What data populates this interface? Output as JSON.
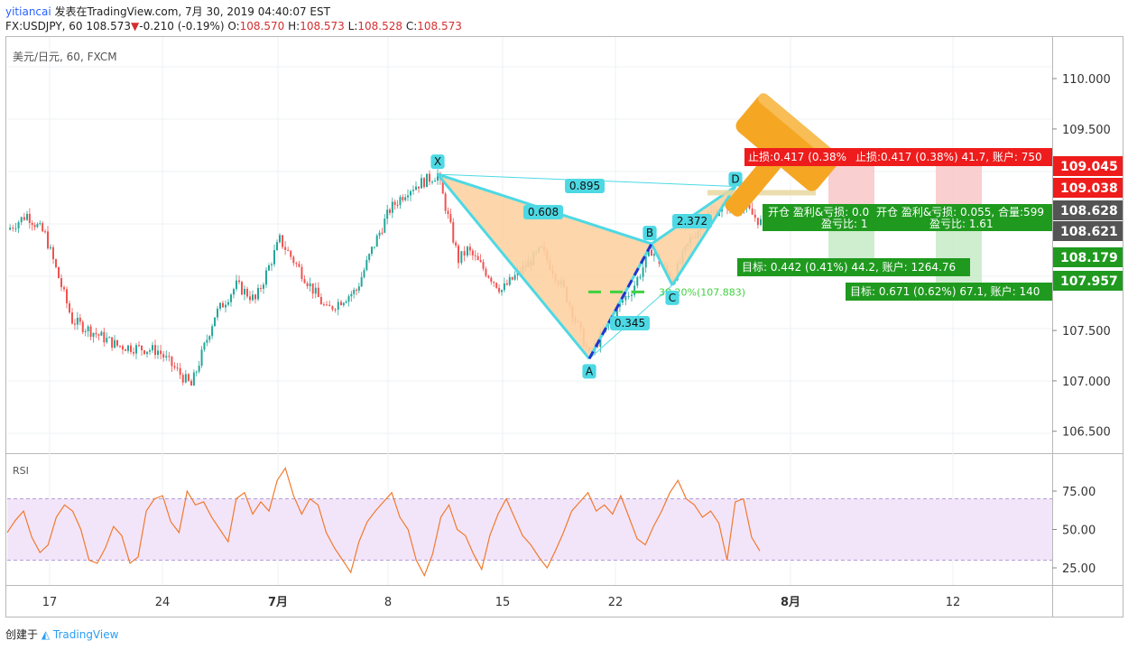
{
  "header": {
    "author": "yitiancai",
    "published_text": "发表在TradingView.com, 7月 30, 2019 04:40:07 EST",
    "symbol_line": "FX:USDJPY, 60",
    "last": "108.573",
    "change": "-0.210 (-0.19%)",
    "ohlc": [
      {
        "k": "O:",
        "v": "108.570"
      },
      {
        "k": "H:",
        "v": "108.573"
      },
      {
        "k": "L:",
        "v": "108.528"
      },
      {
        "k": "C:",
        "v": "108.573"
      }
    ]
  },
  "colors": {
    "up": "#26a69a",
    "down": "#ef5350",
    "pattern_fill": "#fdd2a2",
    "pattern_line": "#4dd9e4",
    "rsi_line": "#f07a2e",
    "rsi_band": "#f3e5f9",
    "stop": "#ef1c1c",
    "target": "#1f9a1f",
    "price_axis_dark": "#545454"
  },
  "chart_data": [
    {
      "type": "candlestick",
      "title": "美元/日元, 60, FXCM",
      "timeframe": "60",
      "x_ticks": [
        "17",
        "24",
        "7月",
        "8",
        "15",
        "22",
        "8月",
        "12"
      ],
      "y_ticks": [
        "110.000",
        "109.500",
        "107.500",
        "107.000",
        "106.500"
      ],
      "ylim": [
        106.3,
        110.35
      ],
      "grid": true,
      "price_path": [
        {
          "t": "6/17",
          "p": 108.5
        },
        {
          "t": "6/18",
          "p": 108.65
        },
        {
          "t": "6/19",
          "p": 108.45
        },
        {
          "t": "6/20",
          "p": 107.6
        },
        {
          "t": "6/21",
          "p": 107.35
        },
        {
          "t": "6/24",
          "p": 107.3
        },
        {
          "t": "6/25",
          "p": 106.95
        },
        {
          "t": "6/26",
          "p": 107.65
        },
        {
          "t": "6/27",
          "p": 107.95
        },
        {
          "t": "6/28",
          "p": 107.8
        },
        {
          "t": "7/1",
          "p": 108.4
        },
        {
          "t": "7/2",
          "p": 107.7
        },
        {
          "t": "7/3",
          "p": 107.8
        },
        {
          "t": "7/4",
          "p": 107.9
        },
        {
          "t": "7/5",
          "p": 108.3
        },
        {
          "t": "7/8",
          "p": 108.7
        },
        {
          "t": "7/9",
          "p": 108.9
        },
        {
          "t": "7/10",
          "p": 109.05
        },
        {
          "t": "7/11",
          "p": 108.2
        },
        {
          "t": "7/12",
          "p": 108.3
        },
        {
          "t": "7/15",
          "p": 107.9
        },
        {
          "t": "7/16",
          "p": 108.3
        },
        {
          "t": "7/17",
          "p": 107.9
        },
        {
          "t": "7/18",
          "p": 107.25
        },
        {
          "t": "7/19",
          "p": 107.8
        },
        {
          "t": "7/22",
          "p": 107.9
        },
        {
          "t": "7/23",
          "p": 108.3
        },
        {
          "t": "7/24",
          "p": 108.0
        },
        {
          "t": "7/25",
          "p": 108.4
        },
        {
          "t": "7/26",
          "p": 108.65
        },
        {
          "t": "7/29",
          "p": 108.8
        },
        {
          "t": "7/30",
          "p": 108.573
        }
      ],
      "harmonic_pattern": {
        "points": [
          {
            "label": "X",
            "t": "7/10",
            "p": 109.05
          },
          {
            "label": "A",
            "t": "7/18",
            "p": 107.22
          },
          {
            "label": "B",
            "t": "7/23",
            "p": 108.36
          },
          {
            "label": "C",
            "t": "7/24",
            "p": 107.95
          },
          {
            "label": "D",
            "t": "7/29",
            "p": 108.93
          }
        ],
        "ratios": [
          {
            "label": "0.895",
            "between": "X-D"
          },
          {
            "label": "0.608",
            "between": "X-B"
          },
          {
            "label": "0.345",
            "between": "A-C"
          },
          {
            "label": "2.372",
            "between": "B-D"
          }
        ],
        "fib_label": "38.20%(107.883)",
        "fib_level": 107.883
      },
      "positions": [
        {
          "stop_label": "止损:0.417 (0.38%",
          "info_label": "开仓 盈利&亏损: 0.0",
          "ratio_label": "盈亏比: 1",
          "target_label": "目标: 0.442 (0.41%) 44.2, 账户: 1264.76"
        },
        {
          "stop_label": "止损:0.417 (0.38%) 41.7, 账户: 750",
          "info_label": "开仓 盈利&亏损: 0.055, 合量:599",
          "ratio_label": "盈亏比: 1.61",
          "target_label": "目标: 0.671 (0.62%) 67.1, 账户: 140"
        }
      ],
      "price_axis_labels": [
        {
          "value": "109.045",
          "kind": "stop"
        },
        {
          "value": "109.038",
          "kind": "stop"
        },
        {
          "value": "108.628",
          "kind": "last"
        },
        {
          "value": "108.621",
          "kind": "last"
        },
        {
          "value": "108.179",
          "kind": "target"
        },
        {
          "value": "107.957",
          "kind": "target"
        }
      ]
    },
    {
      "type": "line",
      "title": "RSI",
      "y_ticks": [
        "75.00",
        "50.00",
        "25.00"
      ],
      "ylim": [
        15,
        95
      ],
      "band": [
        30,
        70
      ],
      "series": [
        {
          "values": [
            48,
            56,
            62,
            45,
            35,
            40,
            58,
            66,
            62,
            50,
            30,
            28,
            38,
            52,
            46,
            28,
            32,
            62,
            70,
            72,
            55,
            48,
            75,
            66,
            68,
            58,
            50,
            42,
            70,
            74,
            60,
            68,
            62,
            82,
            90,
            72,
            60,
            70,
            66,
            48,
            38,
            30,
            22,
            42,
            55,
            62,
            68,
            74,
            58,
            50,
            30,
            20,
            34,
            58,
            66,
            50,
            46,
            34,
            24,
            46,
            60,
            70,
            58,
            46,
            40,
            32,
            25,
            36,
            48,
            62,
            68,
            74,
            62,
            66,
            60,
            72,
            58,
            44,
            40,
            52,
            62,
            74,
            82,
            70,
            66,
            58,
            62,
            54,
            30,
            68,
            70,
            45,
            36
          ]
        }
      ]
    }
  ],
  "footer": {
    "prefix": "创建于",
    "brand": "TradingView"
  }
}
